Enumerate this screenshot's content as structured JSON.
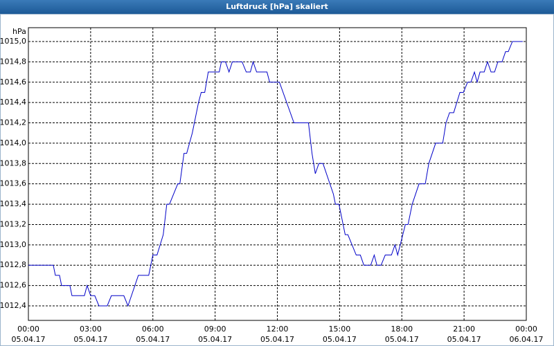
{
  "chart_data": {
    "type": "line",
    "title": "Luftdruck [hPa] skaliert",
    "y_unit": "hPa",
    "x": [
      0,
      1.2,
      1.3,
      1.5,
      1.6,
      2,
      2.1,
      2.7,
      2.83,
      3,
      3.2,
      3.4,
      3.8,
      4,
      4.6,
      4.8,
      5.3,
      5.8,
      6,
      6.2,
      6.5,
      6.67,
      6.8,
      7.2,
      7.3,
      7.5,
      7.63,
      7.9,
      8.2,
      8.33,
      8.5,
      8.67,
      9.2,
      9.3,
      9.5,
      9.67,
      9.83,
      10.3,
      10.5,
      10.7,
      10.83,
      11,
      11.5,
      11.63,
      12.1,
      12.8,
      13.5,
      13.67,
      13.83,
      14,
      14.2,
      14.7,
      14.8,
      14.97,
      15.27,
      15.4,
      15.8,
      16,
      16.17,
      16.5,
      16.67,
      16.8,
      17,
      17.2,
      17.5,
      17.67,
      17.8,
      18.17,
      18.3,
      18.5,
      18.83,
      19.13,
      19.3,
      19.63,
      19.97,
      20.13,
      20.3,
      20.5,
      20.8,
      20.97,
      21.17,
      21.33,
      21.5,
      21.63,
      21.77,
      21.97,
      22.13,
      22.3,
      22.47,
      22.63,
      22.83,
      23,
      23.13,
      23.33,
      23.83
    ],
    "series": [
      {
        "name": "Luftdruck",
        "color": "#0000c8",
        "values": [
          1012.8,
          1012.8,
          1012.7,
          1012.7,
          1012.6,
          1012.6,
          1012.5,
          1012.5,
          1012.6,
          1012.5,
          1012.5,
          1012.4,
          1012.4,
          1012.5,
          1012.5,
          1012.4,
          1012.7,
          1012.7,
          1012.9,
          1012.9,
          1013.1,
          1013.4,
          1013.4,
          1013.6,
          1013.6,
          1013.9,
          1013.9,
          1014.1,
          1014.4,
          1014.5,
          1014.5,
          1014.7,
          1014.7,
          1014.8,
          1014.8,
          1014.7,
          1014.8,
          1014.8,
          1014.7,
          1014.7,
          1014.8,
          1014.7,
          1014.7,
          1014.6,
          1014.6,
          1014.2,
          1014.2,
          1013.9,
          1013.7,
          1013.8,
          1013.8,
          1013.5,
          1013.4,
          1013.4,
          1013.1,
          1013.1,
          1012.9,
          1012.9,
          1012.8,
          1012.8,
          1012.9,
          1012.8,
          1012.8,
          1012.9,
          1012.9,
          1013.0,
          1012.9,
          1013.2,
          1013.2,
          1013.4,
          1013.6,
          1013.6,
          1013.8,
          1014.0,
          1014.0,
          1014.2,
          1014.3,
          1014.3,
          1014.5,
          1014.5,
          1014.6,
          1014.6,
          1014.7,
          1014.6,
          1014.7,
          1014.7,
          1014.8,
          1014.7,
          1014.7,
          1014.8,
          1014.8,
          1014.9,
          1014.9,
          1015.0,
          1015.0
        ]
      }
    ],
    "xlim": [
      0,
      24
    ],
    "xticks": [
      {
        "value": 0,
        "label": "00:00"
      },
      {
        "value": 3,
        "label": "03:00"
      },
      {
        "value": 6,
        "label": "06:00"
      },
      {
        "value": 9,
        "label": "09:00"
      },
      {
        "value": 12,
        "label": "12:00"
      },
      {
        "value": 15,
        "label": "15:00"
      },
      {
        "value": 18,
        "label": "18:00"
      },
      {
        "value": 21,
        "label": "21:00"
      },
      {
        "value": 24,
        "label": "00:00"
      }
    ],
    "xtick_dates": [
      "05.04.17",
      "05.04.17",
      "05.04.17",
      "05.04.17",
      "05.04.17",
      "05.04.17",
      "05.04.17",
      "05.04.17",
      "06.04.17"
    ],
    "ylim": [
      1012.257,
      1015.136
    ],
    "yticks": [
      {
        "value": 1012.4,
        "label": "1012,4"
      },
      {
        "value": 1012.6,
        "label": "1012,6"
      },
      {
        "value": 1012.8,
        "label": "1012,8"
      },
      {
        "value": 1013.0,
        "label": "1013,0"
      },
      {
        "value": 1013.2,
        "label": "1013,2"
      },
      {
        "value": 1013.4,
        "label": "1013,4"
      },
      {
        "value": 1013.6,
        "label": "1013,6"
      },
      {
        "value": 1013.8,
        "label": "1013,8"
      },
      {
        "value": 1014.0,
        "label": "1014,0"
      },
      {
        "value": 1014.2,
        "label": "1014,2"
      },
      {
        "value": 1014.4,
        "label": "1014,4"
      },
      {
        "value": 1014.6,
        "label": "1014,6"
      },
      {
        "value": 1014.8,
        "label": "1014,8"
      },
      {
        "value": 1015.0,
        "label": "1015,0"
      }
    ],
    "grid": true
  }
}
